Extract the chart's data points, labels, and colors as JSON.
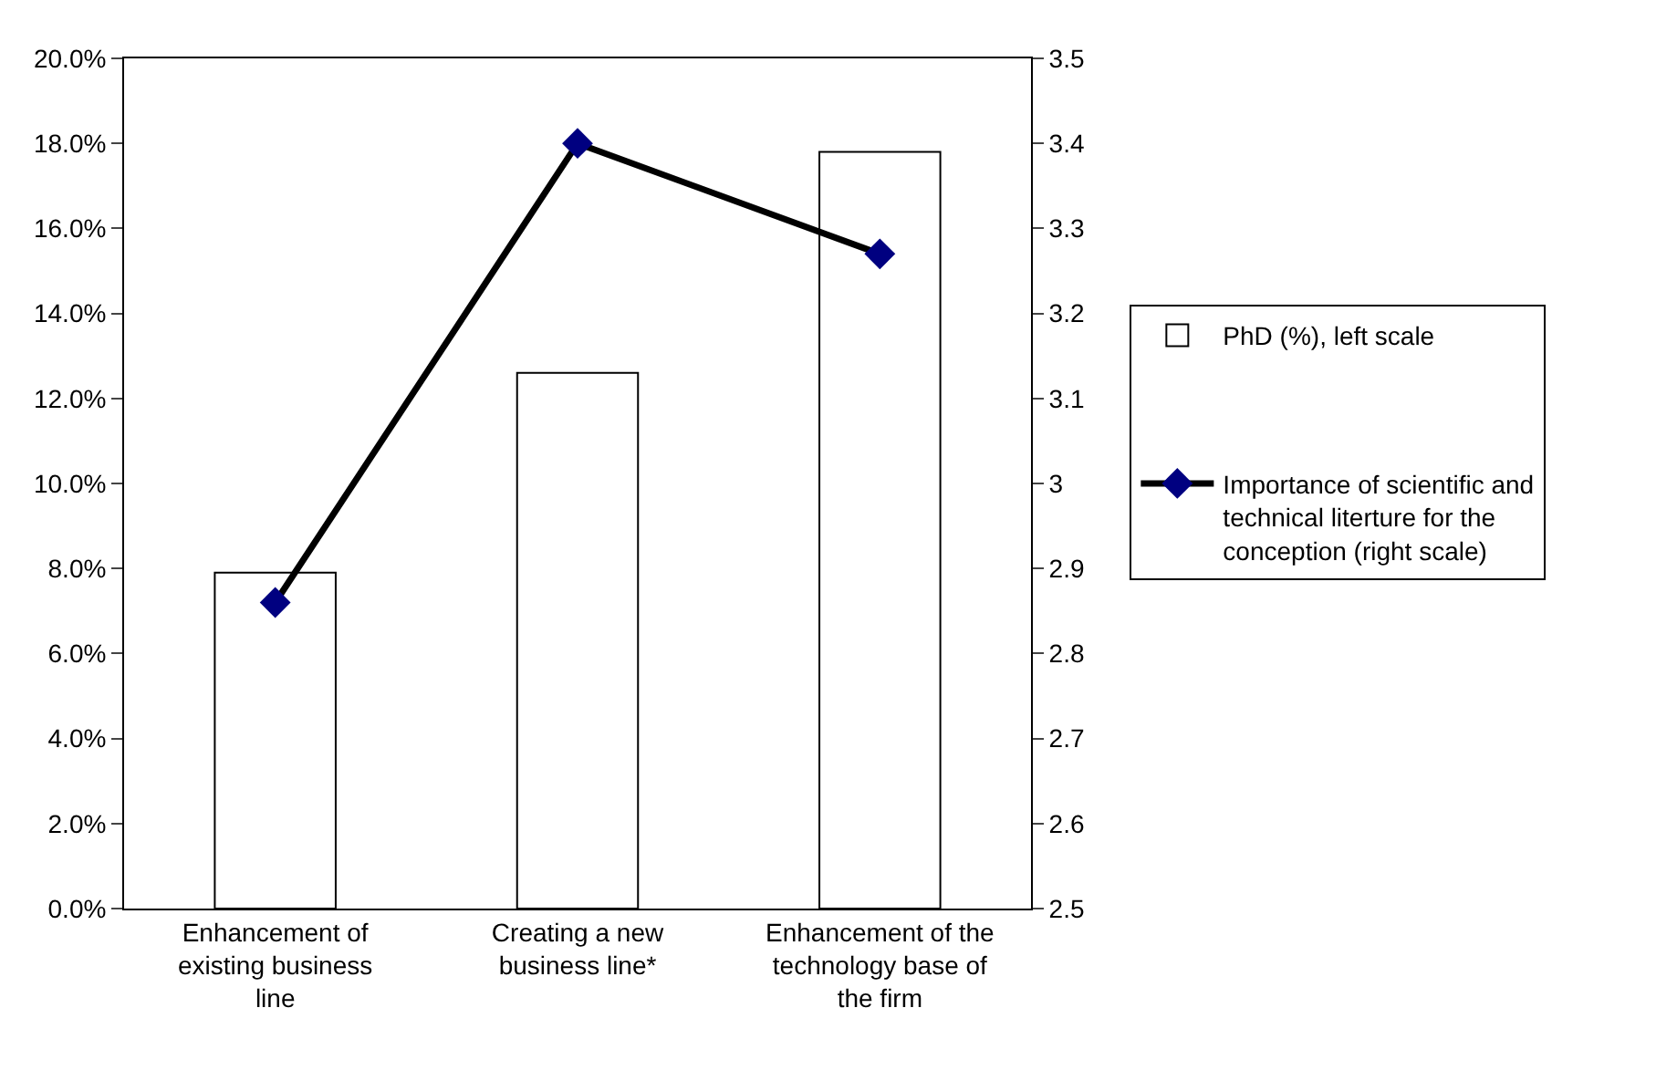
{
  "chart_data": {
    "type": "bar",
    "categories": [
      "Enhancement of existing business line",
      "Creating a new business line*",
      "Enhancement of the technology base of the firm"
    ],
    "series": [
      {
        "name": "PhD (%), left scale",
        "color": "#ffffff",
        "values": [
          7.9,
          12.6,
          17.8
        ]
      },
      {
        "name": "Importance of scientific and technical literture for the conception (right scale)",
        "type": "line",
        "axis": "y2",
        "color": "#000000",
        "marker": "diamond",
        "values": [
          2.86,
          3.4,
          3.27
        ]
      }
    ],
    "ylim": [
      0,
      20
    ],
    "yticks": [
      {
        "value": 0,
        "label": "0.0%"
      },
      {
        "value": 2,
        "label": "2.0%"
      },
      {
        "value": 4,
        "label": "4.0%"
      },
      {
        "value": 6,
        "label": "6.0%"
      },
      {
        "value": 8,
        "label": "8.0%"
      },
      {
        "value": 10,
        "label": "10.0%"
      },
      {
        "value": 12,
        "label": "12.0%"
      },
      {
        "value": 14,
        "label": "14.0%"
      },
      {
        "value": 16,
        "label": "16.0%"
      },
      {
        "value": 18,
        "label": "18.0%"
      },
      {
        "value": 20,
        "label": "20.0%"
      }
    ],
    "y2lim": [
      2.5,
      3.5
    ],
    "y2ticks": [
      2.5,
      2.6,
      2.7,
      2.8,
      2.9,
      3,
      3.1,
      3.2,
      3.3,
      3.4,
      3.5
    ],
    "legend": "right"
  }
}
